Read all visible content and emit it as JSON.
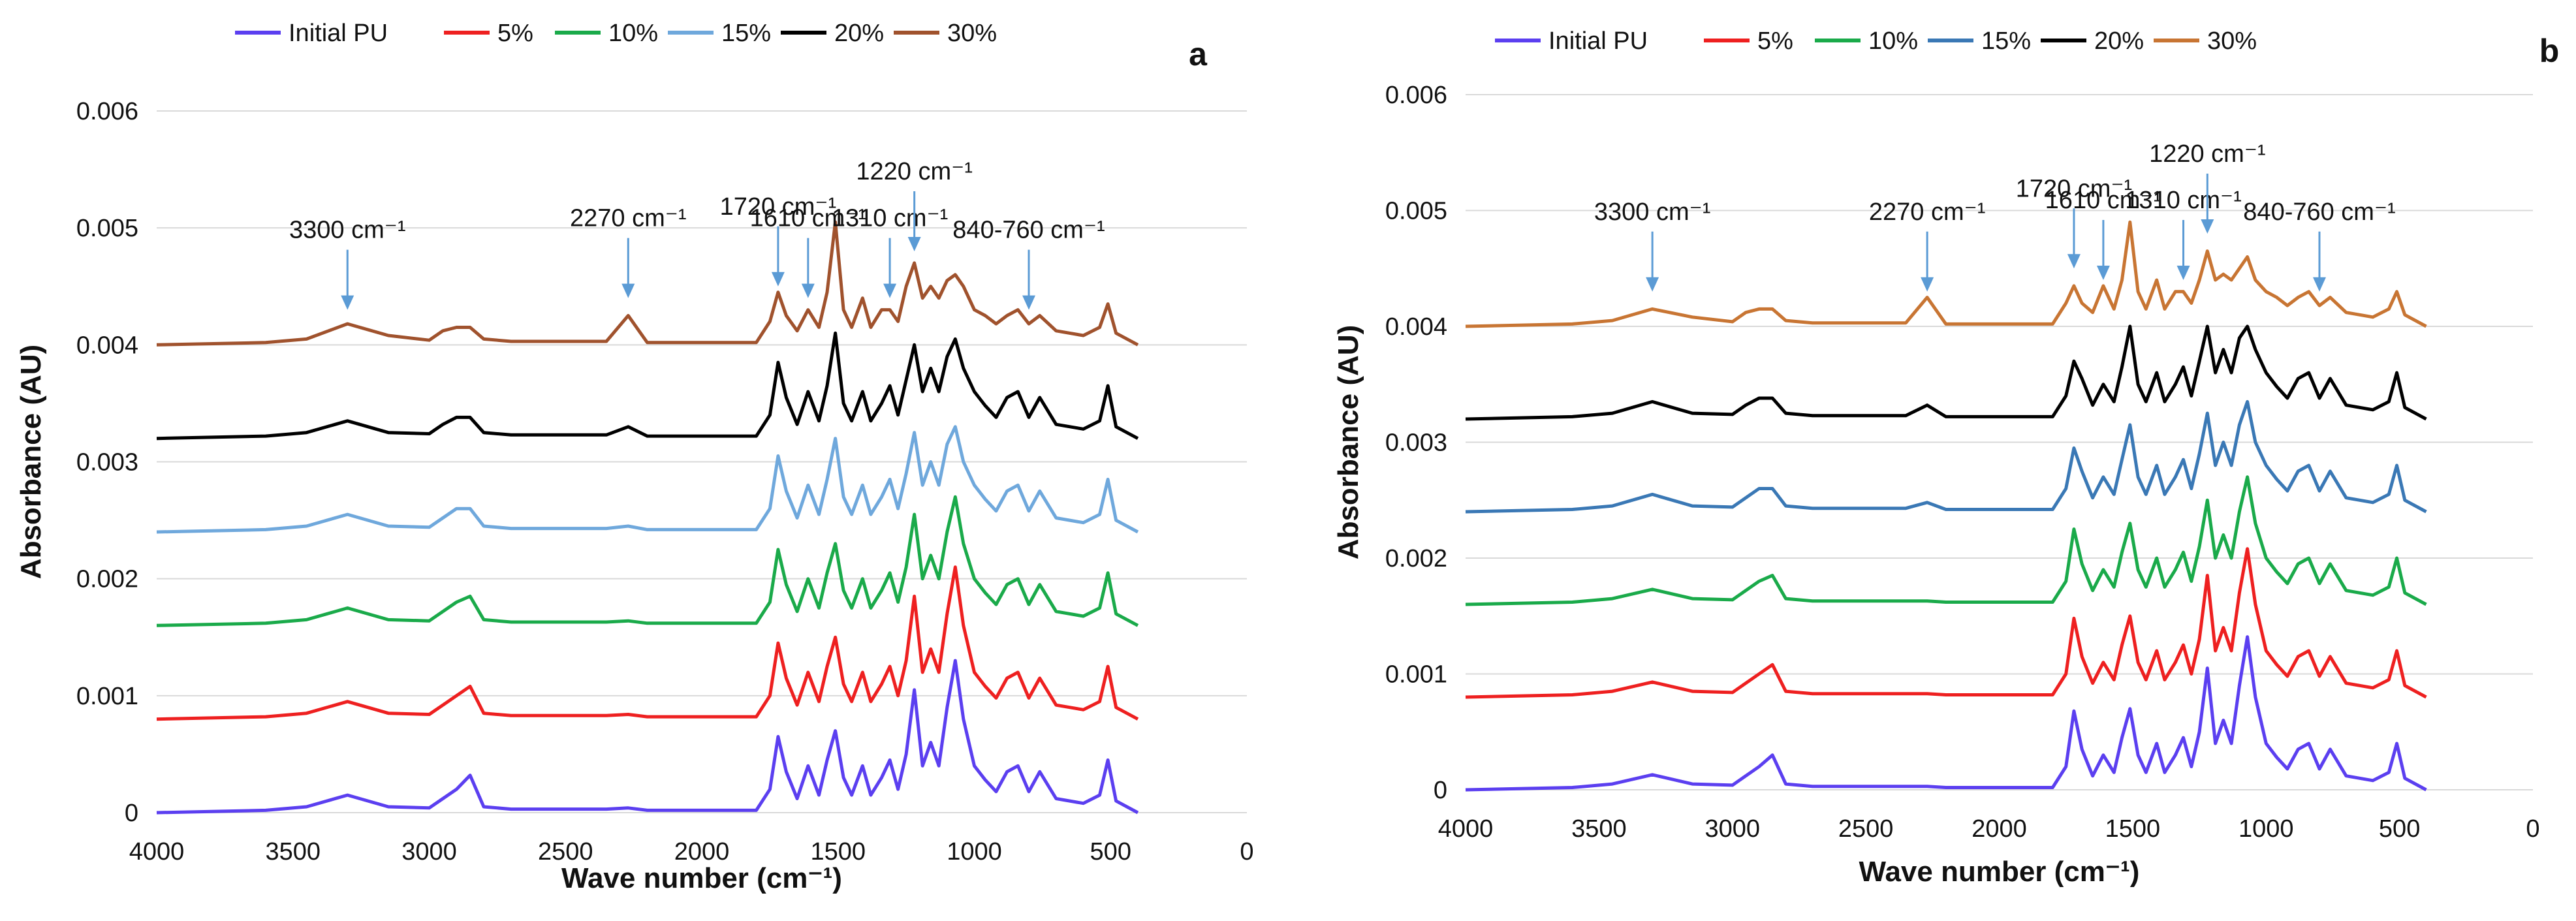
{
  "chart_data": [
    {
      "type": "line",
      "panel_label": "a",
      "xlabel": "Wave number (cm⁻¹)",
      "ylabel": "Absorbance (AU)",
      "xlim": [
        4000,
        0
      ],
      "ylim": [
        0,
        0.006
      ],
      "x_ticks": [
        "4000",
        "3500",
        "3000",
        "2500",
        "2000",
        "1500",
        "1000",
        "500",
        "0"
      ],
      "y_ticks": [
        "0",
        "0.001",
        "0.002",
        "0.003",
        "0.004",
        "0.005",
        "0.006"
      ],
      "grid": "horizontal",
      "legend_position": "top",
      "x": [
        4000,
        3600,
        3450,
        3300,
        3150,
        3000,
        2950,
        2900,
        2850,
        2800,
        2700,
        2500,
        2350,
        2270,
        2200,
        2000,
        1800,
        1750,
        1720,
        1690,
        1650,
        1610,
        1570,
        1540,
        1510,
        1480,
        1450,
        1410,
        1380,
        1340,
        1310,
        1280,
        1250,
        1220,
        1190,
        1160,
        1130,
        1100,
        1070,
        1040,
        1000,
        960,
        920,
        880,
        840,
        800,
        760,
        700,
        600,
        540,
        510,
        480,
        400
      ],
      "series": [
        {
          "name": "Initial PU",
          "color": "#5b3ff0",
          "offset": 0,
          "values": [
            0,
            2e-05,
            5e-05,
            0.00015,
            5e-05,
            4e-05,
            0.00012,
            0.0002,
            0.00032,
            5e-05,
            3e-05,
            3e-05,
            3e-05,
            4e-05,
            2e-05,
            2e-05,
            2e-05,
            0.0002,
            0.00065,
            0.00035,
            0.00012,
            0.0004,
            0.00015,
            0.00045,
            0.0007,
            0.0003,
            0.00015,
            0.0004,
            0.00015,
            0.0003,
            0.00045,
            0.0002,
            0.0005,
            0.00105,
            0.0004,
            0.0006,
            0.0004,
            0.0009,
            0.0013,
            0.0008,
            0.0004,
            0.00028,
            0.00018,
            0.00035,
            0.0004,
            0.00018,
            0.00035,
            0.00012,
            8e-05,
            0.00015,
            0.00045,
            0.0001,
            0
          ]
        },
        {
          "name": "5%",
          "color": "#ee2020",
          "offset": 0.0008,
          "values": [
            0,
            2e-05,
            5e-05,
            0.00015,
            5e-05,
            4e-05,
            0.00012,
            0.0002,
            0.00028,
            5e-05,
            3e-05,
            3e-05,
            3e-05,
            4e-05,
            2e-05,
            2e-05,
            2e-05,
            0.0002,
            0.00065,
            0.00035,
            0.00012,
            0.0004,
            0.00015,
            0.00045,
            0.0007,
            0.0003,
            0.00015,
            0.0004,
            0.00015,
            0.0003,
            0.00045,
            0.0002,
            0.0005,
            0.00105,
            0.0004,
            0.0006,
            0.0004,
            0.0009,
            0.0013,
            0.0008,
            0.0004,
            0.00028,
            0.00018,
            0.00035,
            0.0004,
            0.00018,
            0.00035,
            0.00012,
            8e-05,
            0.00015,
            0.00045,
            0.0001,
            0
          ]
        },
        {
          "name": "10%",
          "color": "#1aaa4a",
          "offset": 0.0016,
          "values": [
            0,
            2e-05,
            5e-05,
            0.00015,
            5e-05,
            4e-05,
            0.00012,
            0.0002,
            0.00025,
            5e-05,
            3e-05,
            3e-05,
            3e-05,
            4e-05,
            2e-05,
            2e-05,
            2e-05,
            0.0002,
            0.00065,
            0.00035,
            0.00012,
            0.0004,
            0.00015,
            0.00045,
            0.0007,
            0.0003,
            0.00015,
            0.0004,
            0.00015,
            0.0003,
            0.00045,
            0.0002,
            0.0005,
            0.00095,
            0.0004,
            0.0006,
            0.0004,
            0.0008,
            0.0011,
            0.0007,
            0.0004,
            0.00028,
            0.00018,
            0.00035,
            0.0004,
            0.00018,
            0.00035,
            0.00012,
            8e-05,
            0.00015,
            0.00045,
            0.0001,
            0
          ]
        },
        {
          "name": "15%",
          "color": "#6fa8dc",
          "offset": 0.0024,
          "values": [
            0,
            2e-05,
            5e-05,
            0.00015,
            5e-05,
            4e-05,
            0.00012,
            0.0002,
            0.0002,
            5e-05,
            3e-05,
            3e-05,
            3e-05,
            5e-05,
            2e-05,
            2e-05,
            2e-05,
            0.0002,
            0.00065,
            0.00035,
            0.00012,
            0.0004,
            0.00015,
            0.00045,
            0.0008,
            0.0003,
            0.00015,
            0.0004,
            0.00015,
            0.0003,
            0.00045,
            0.0002,
            0.0005,
            0.00085,
            0.0004,
            0.0006,
            0.0004,
            0.00075,
            0.0009,
            0.0006,
            0.0004,
            0.00028,
            0.00018,
            0.00035,
            0.0004,
            0.00018,
            0.00035,
            0.00012,
            8e-05,
            0.00015,
            0.00045,
            0.0001,
            0
          ]
        },
        {
          "name": "20%",
          "color": "#000000",
          "offset": 0.0032,
          "values": [
            0,
            2e-05,
            5e-05,
            0.00015,
            5e-05,
            4e-05,
            0.00012,
            0.00018,
            0.00018,
            5e-05,
            3e-05,
            3e-05,
            3e-05,
            0.0001,
            2e-05,
            2e-05,
            2e-05,
            0.0002,
            0.00065,
            0.00035,
            0.00012,
            0.0004,
            0.00015,
            0.00045,
            0.0009,
            0.0003,
            0.00015,
            0.0004,
            0.00015,
            0.0003,
            0.00045,
            0.0002,
            0.0005,
            0.0008,
            0.0004,
            0.0006,
            0.0004,
            0.0007,
            0.00085,
            0.0006,
            0.0004,
            0.00028,
            0.00018,
            0.00035,
            0.0004,
            0.00018,
            0.00035,
            0.00012,
            8e-05,
            0.00015,
            0.00045,
            0.0001,
            0
          ]
        },
        {
          "name": "30%",
          "color": "#a0522d",
          "offset": 0.004,
          "values": [
            0,
            2e-05,
            5e-05,
            0.00018,
            8e-05,
            4e-05,
            0.00012,
            0.00015,
            0.00015,
            5e-05,
            3e-05,
            3e-05,
            3e-05,
            0.00025,
            2e-05,
            2e-05,
            2e-05,
            0.0002,
            0.00045,
            0.00025,
            0.00012,
            0.0003,
            0.00015,
            0.00045,
            0.00105,
            0.0003,
            0.00015,
            0.0004,
            0.00015,
            0.0003,
            0.0003,
            0.0002,
            0.0005,
            0.0007,
            0.0004,
            0.0005,
            0.0004,
            0.00055,
            0.0006,
            0.0005,
            0.0003,
            0.00025,
            0.00018,
            0.00025,
            0.0003,
            0.00018,
            0.00025,
            0.00012,
            8e-05,
            0.00015,
            0.00035,
            0.0001,
            0
          ]
        }
      ],
      "annotations": [
        {
          "text": "3300 cm⁻¹",
          "x": 3300,
          "y": 0.0043
        },
        {
          "text": "2270 cm⁻¹",
          "x": 2270,
          "y": 0.0044
        },
        {
          "text": "1720 cm⁻¹",
          "x": 1720,
          "y": 0.0045
        },
        {
          "text": "1610 cm⁻¹",
          "x": 1610,
          "y": 0.0044
        },
        {
          "text": "1310 cm⁻¹",
          "x": 1310,
          "y": 0.0044
        },
        {
          "text": "1220 cm⁻¹",
          "x": 1220,
          "y": 0.0048
        },
        {
          "text": "840-760 cm⁻¹",
          "x": 800,
          "y": 0.0043
        }
      ]
    },
    {
      "type": "line",
      "panel_label": "b",
      "xlabel": "Wave number (cm⁻¹)",
      "ylabel": "Absorbance (AU)",
      "xlim": [
        4000,
        0
      ],
      "ylim": [
        0,
        0.006
      ],
      "x_ticks": [
        "4000",
        "3500",
        "3000",
        "2500",
        "2000",
        "1500",
        "1000",
        "500",
        "0"
      ],
      "y_ticks": [
        "0",
        "0.001",
        "0.002",
        "0.003",
        "0.004",
        "0.005",
        "0.006"
      ],
      "grid": "horizontal",
      "legend_position": "top",
      "x": [
        4000,
        3600,
        3450,
        3300,
        3150,
        3000,
        2950,
        2900,
        2850,
        2800,
        2700,
        2500,
        2350,
        2270,
        2200,
        2000,
        1800,
        1750,
        1720,
        1690,
        1650,
        1610,
        1570,
        1540,
        1510,
        1480,
        1450,
        1410,
        1380,
        1340,
        1310,
        1280,
        1250,
        1220,
        1190,
        1160,
        1130,
        1100,
        1070,
        1040,
        1000,
        960,
        920,
        880,
        840,
        800,
        760,
        700,
        600,
        540,
        510,
        480,
        400
      ],
      "series": [
        {
          "name": "Initial PU",
          "color": "#5b3ff0",
          "offset": 0,
          "values": [
            0,
            2e-05,
            5e-05,
            0.00013,
            5e-05,
            4e-05,
            0.00012,
            0.0002,
            0.0003,
            5e-05,
            3e-05,
            3e-05,
            3e-05,
            3e-05,
            2e-05,
            2e-05,
            2e-05,
            0.0002,
            0.00068,
            0.00035,
            0.00012,
            0.0003,
            0.00015,
            0.00045,
            0.0007,
            0.0003,
            0.00015,
            0.0004,
            0.00015,
            0.0003,
            0.00045,
            0.0002,
            0.0005,
            0.00105,
            0.0004,
            0.0006,
            0.0004,
            0.0009,
            0.00132,
            0.0008,
            0.0004,
            0.00028,
            0.00018,
            0.00035,
            0.0004,
            0.00018,
            0.00035,
            0.00012,
            8e-05,
            0.00015,
            0.0004,
            0.0001,
            0
          ]
        },
        {
          "name": "5%",
          "color": "#ee2020",
          "offset": 0.0008,
          "values": [
            0,
            2e-05,
            5e-05,
            0.00013,
            5e-05,
            4e-05,
            0.00012,
            0.0002,
            0.00028,
            5e-05,
            3e-05,
            3e-05,
            3e-05,
            3e-05,
            2e-05,
            2e-05,
            2e-05,
            0.0002,
            0.00068,
            0.00035,
            0.00012,
            0.0003,
            0.00015,
            0.00045,
            0.0007,
            0.0003,
            0.00015,
            0.0004,
            0.00015,
            0.0003,
            0.00045,
            0.0002,
            0.0005,
            0.00105,
            0.0004,
            0.0006,
            0.0004,
            0.0009,
            0.00128,
            0.0008,
            0.0004,
            0.00028,
            0.00018,
            0.00035,
            0.0004,
            0.00018,
            0.00035,
            0.00012,
            8e-05,
            0.00015,
            0.0004,
            0.0001,
            0
          ]
        },
        {
          "name": "10%",
          "color": "#1aaa4a",
          "offset": 0.0016,
          "values": [
            0,
            2e-05,
            5e-05,
            0.00013,
            5e-05,
            4e-05,
            0.00012,
            0.0002,
            0.00025,
            5e-05,
            3e-05,
            3e-05,
            3e-05,
            3e-05,
            2e-05,
            2e-05,
            2e-05,
            0.0002,
            0.00065,
            0.00035,
            0.00012,
            0.0003,
            0.00015,
            0.00045,
            0.0007,
            0.0003,
            0.00015,
            0.0004,
            0.00015,
            0.0003,
            0.00045,
            0.0002,
            0.0005,
            0.0009,
            0.0004,
            0.0006,
            0.0004,
            0.0008,
            0.0011,
            0.0007,
            0.0004,
            0.00028,
            0.00018,
            0.00035,
            0.0004,
            0.00018,
            0.00035,
            0.00012,
            8e-05,
            0.00015,
            0.0004,
            0.0001,
            0
          ]
        },
        {
          "name": "15%",
          "color": "#3a78b5",
          "offset": 0.0024,
          "values": [
            0,
            2e-05,
            5e-05,
            0.00015,
            5e-05,
            4e-05,
            0.00012,
            0.0002,
            0.0002,
            5e-05,
            3e-05,
            3e-05,
            3e-05,
            8e-05,
            2e-05,
            2e-05,
            2e-05,
            0.0002,
            0.00055,
            0.00035,
            0.00012,
            0.0003,
            0.00015,
            0.00045,
            0.00075,
            0.0003,
            0.00015,
            0.0004,
            0.00015,
            0.0003,
            0.00045,
            0.0002,
            0.0005,
            0.00085,
            0.0004,
            0.0006,
            0.0004,
            0.00075,
            0.00095,
            0.0006,
            0.0004,
            0.00028,
            0.00018,
            0.00035,
            0.0004,
            0.00018,
            0.00035,
            0.00012,
            8e-05,
            0.00015,
            0.0004,
            0.0001,
            0
          ]
        },
        {
          "name": "20%",
          "color": "#000000",
          "offset": 0.0032,
          "values": [
            0,
            2e-05,
            5e-05,
            0.00015,
            5e-05,
            4e-05,
            0.00012,
            0.00018,
            0.00018,
            5e-05,
            3e-05,
            3e-05,
            3e-05,
            0.00012,
            2e-05,
            2e-05,
            2e-05,
            0.0002,
            0.0005,
            0.00035,
            0.00012,
            0.0003,
            0.00015,
            0.00045,
            0.0008,
            0.0003,
            0.00015,
            0.0004,
            0.00015,
            0.0003,
            0.00045,
            0.0002,
            0.0005,
            0.0008,
            0.0004,
            0.0006,
            0.0004,
            0.0007,
            0.0008,
            0.0006,
            0.0004,
            0.00028,
            0.00018,
            0.00035,
            0.0004,
            0.00018,
            0.00035,
            0.00012,
            8e-05,
            0.00015,
            0.0004,
            0.0001,
            0
          ]
        },
        {
          "name": "30%",
          "color": "#c87533",
          "offset": 0.004,
          "values": [
            0,
            2e-05,
            5e-05,
            0.00015,
            8e-05,
            4e-05,
            0.00012,
            0.00015,
            0.00015,
            5e-05,
            3e-05,
            3e-05,
            3e-05,
            0.00025,
            2e-05,
            2e-05,
            2e-05,
            0.0002,
            0.00035,
            0.0002,
            0.00012,
            0.00035,
            0.00015,
            0.0004,
            0.0009,
            0.0003,
            0.00015,
            0.0004,
            0.00015,
            0.0003,
            0.0003,
            0.0002,
            0.0004,
            0.00065,
            0.0004,
            0.00045,
            0.0004,
            0.0005,
            0.0006,
            0.0004,
            0.0003,
            0.00025,
            0.00018,
            0.00025,
            0.0003,
            0.00018,
            0.00025,
            0.00012,
            8e-05,
            0.00015,
            0.0003,
            0.0001,
            0
          ]
        }
      ],
      "annotations": [
        {
          "text": "3300 cm⁻¹",
          "x": 3300,
          "y": 0.0043
        },
        {
          "text": "2270 cm⁻¹",
          "x": 2270,
          "y": 0.0043
        },
        {
          "text": "1720 cm⁻¹",
          "x": 1720,
          "y": 0.0045
        },
        {
          "text": "1610 cm⁻¹",
          "x": 1610,
          "y": 0.0044
        },
        {
          "text": "1310 cm⁻¹",
          "x": 1310,
          "y": 0.0044
        },
        {
          "text": "1220 cm⁻¹",
          "x": 1220,
          "y": 0.0048
        },
        {
          "text": "840-760 cm⁻¹",
          "x": 800,
          "y": 0.0043
        }
      ]
    }
  ]
}
